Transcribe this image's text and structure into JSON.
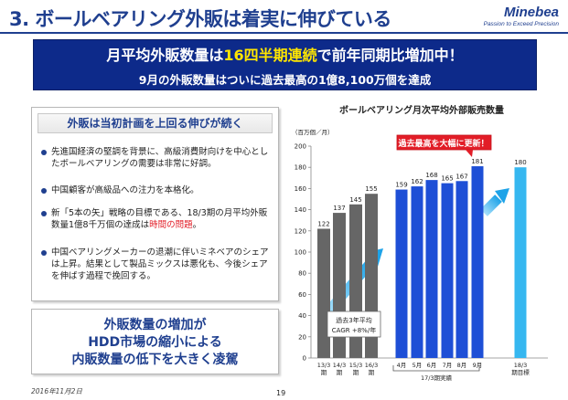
{
  "title": "3. ボールベアリング外販は着実に伸びている",
  "logo": {
    "name": "Minebea",
    "slogan": "Passion to Exceed Precision"
  },
  "banner": {
    "main_pre": "月平均外販数量は",
    "main_hl": "16四半期連続",
    "main_post": "で前年同期比増加中！",
    "sub": "9月の外販数量はついに過去最高の1億8,100万個を達成"
  },
  "left": {
    "header": "外販は当初計画を上回る伸びが続く",
    "b1": "先進国経済の堅調を背景に、高級消費財向けを中心としたボールベアリングの需要は非常に好調。",
    "b2": "中国顧客が高級品への注力を本格化。",
    "b3_pre": "新「5本の矢」戦略の目標である、18/3期の月平均外販数量1億8千万個の達成は",
    "b3_red": "時間の問題",
    "b3_post": "。",
    "b4": "中国ベアリングメーカーの退潮に伴いミネベアのシェアは上昇。結果として製品ミックスは悪化も、今後シェアを伸ばす過程で挽回する。"
  },
  "bottom_box": {
    "line1": "外販数量の増加が",
    "line2": "HDD市場の縮小による",
    "line3": "内販数量の低下を大きく凌駕"
  },
  "date": "2016年11月2日",
  "page_number": "19",
  "chart_data": {
    "type": "bar",
    "title": "ボールベアリング月次平均外部販売数量",
    "unit_label": "（百万個／月）",
    "ylim": [
      0,
      200
    ],
    "yticks": [
      0,
      20,
      40,
      60,
      80,
      100,
      120,
      140,
      160,
      180,
      200
    ],
    "categories": [
      "13/3期",
      "14/3期",
      "15/3期",
      "16/3期",
      "4月",
      "5月",
      "6月",
      "7月",
      "8月",
      "9月",
      "18/3期目標"
    ],
    "values": [
      122,
      137,
      145,
      155,
      159,
      162,
      168,
      165,
      167,
      181,
      180
    ],
    "group_label": "17/3期実績",
    "annotation_record": "過去最高を大幅に更新！",
    "annotation_cagr_1": "過去3年平均",
    "annotation_cagr_2": "CAGR +8%/年",
    "colors": {
      "past": "#666666",
      "actual": "#1e4fd6",
      "target": "#36b7f0",
      "record": "#e21d27"
    }
  }
}
